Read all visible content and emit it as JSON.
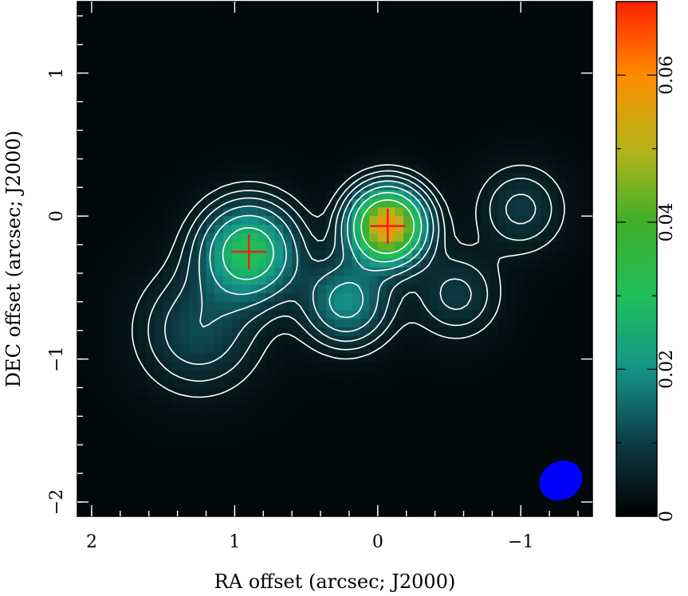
{
  "chart_data": {
    "type": "heatmap",
    "title": "",
    "xlabel": "RA offset (arcsec; J2000)",
    "ylabel": "DEC offset (arcsec; J2000)",
    "x_direction": "decreasing to the right",
    "xlim": [
      2.1,
      -1.5
    ],
    "ylim": [
      -2.1,
      1.5
    ],
    "x_ticks": [
      2,
      1,
      0,
      -1
    ],
    "x_tick_labels": [
      "2",
      "1",
      "0",
      "−1"
    ],
    "y_ticks": [
      1,
      0,
      -1,
      -2
    ],
    "y_tick_labels": [
      "1",
      "0",
      "−1",
      "−2"
    ],
    "grid": false,
    "colorbar": {
      "position": "right",
      "range": [
        0,
        0.07
      ],
      "ticks": [
        0,
        0.02,
        0.04,
        0.06
      ],
      "tick_labels": [
        "0",
        "0.02",
        "0.04",
        "0.06"
      ],
      "colormap": [
        "#000000",
        "#0d3b45",
        "#14948a",
        "#1fbf5a",
        "#3fae2a",
        "#b5b51a",
        "#ff8c00",
        "#ff2000"
      ]
    },
    "sources": [
      {
        "x": 0.9,
        "y": -0.25,
        "peak": 0.03
      },
      {
        "x": -0.07,
        "y": -0.07,
        "peak": 0.058
      },
      {
        "x": 0.22,
        "y": -0.6,
        "peak": 0.018
      },
      {
        "x": 1.25,
        "y": -0.8,
        "peak": 0.01
      },
      {
        "x": -1.0,
        "y": 0.05,
        "peak": 0.008
      },
      {
        "x": -0.55,
        "y": -0.55,
        "peak": 0.008
      }
    ],
    "markers": [
      {
        "type": "cross",
        "x": 0.9,
        "y": -0.25,
        "color": "#e8211c"
      },
      {
        "type": "cross",
        "x": -0.07,
        "y": -0.07,
        "color": "#e8211c"
      }
    ],
    "contour_color": "#ffffff",
    "beam": {
      "x": -1.28,
      "y": -1.85,
      "color": "#0000ff"
    }
  }
}
